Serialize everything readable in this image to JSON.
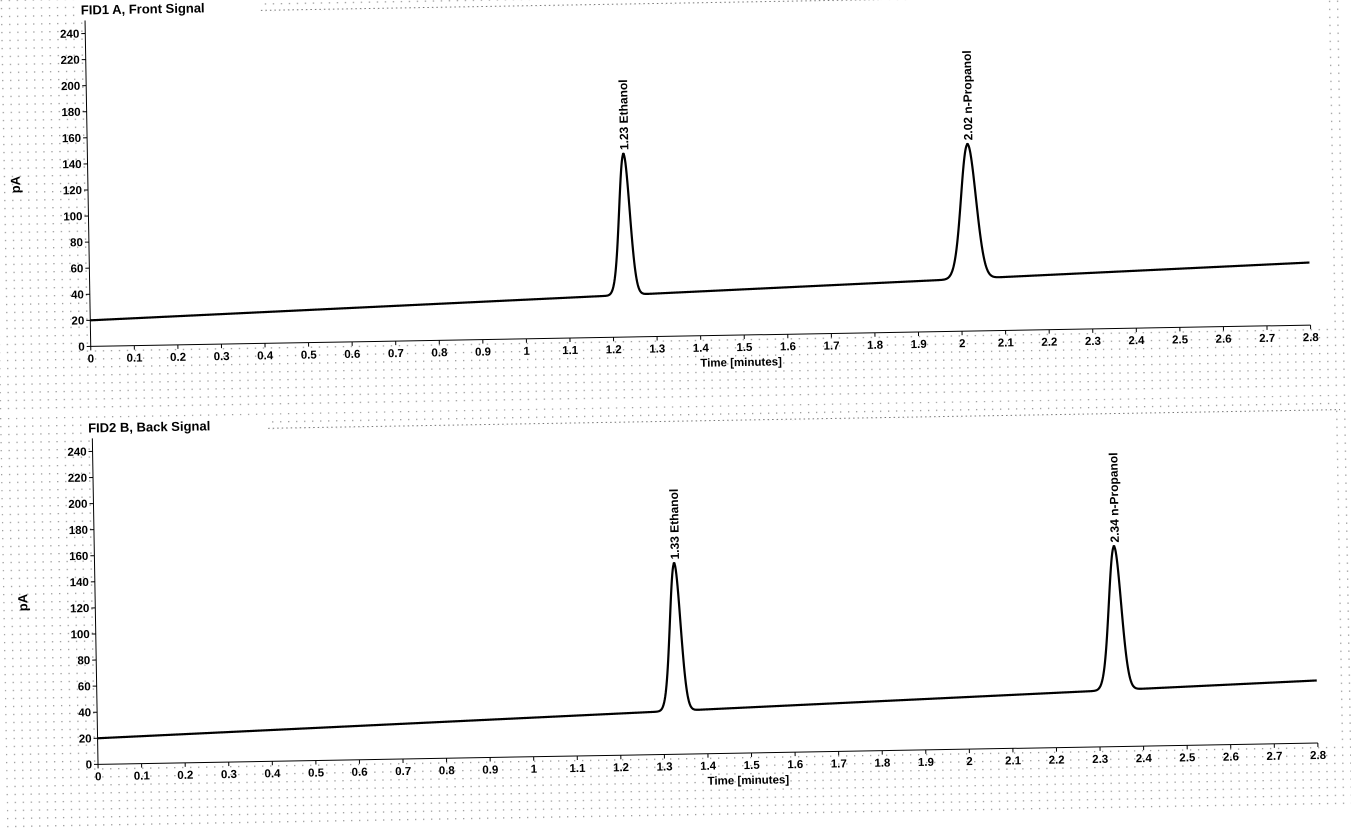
{
  "chart_data": [
    {
      "type": "line",
      "title": "FID1 A, Front Signal",
      "xlabel": "Time [minutes]",
      "ylabel": "pA",
      "xlim": [
        0,
        2.8
      ],
      "ylim": [
        0,
        250
      ],
      "x_ticks": [
        "0",
        "0.1",
        "0.2",
        "0.3",
        "0.4",
        "0.5",
        "0.6",
        "0.7",
        "0.8",
        "0.9",
        "1",
        "1.1",
        "1.2",
        "1.3",
        "1.4",
        "1.5",
        "1.6",
        "1.7",
        "1.8",
        "1.9",
        "2",
        "2.1",
        "2.2",
        "2.3",
        "2.4",
        "2.5",
        "2.6",
        "2.7",
        "2.8"
      ],
      "y_ticks": [
        "0",
        "20",
        "40",
        "60",
        "80",
        "100",
        "120",
        "140",
        "160",
        "180",
        "200",
        "220",
        "240"
      ],
      "grid": true,
      "baseline": {
        "start": 20,
        "end": 48
      },
      "peaks": [
        {
          "time": 1.23,
          "height": 128,
          "width": 0.012,
          "label": "1.23  Ethanol"
        },
        {
          "time": 2.02,
          "height": 123,
          "width": 0.017,
          "label": "2.02  n-Propanol"
        }
      ]
    },
    {
      "type": "line",
      "title": "FID2 B, Back Signal",
      "xlabel": "Time [minutes]",
      "ylabel": "pA",
      "xlim": [
        0,
        2.8
      ],
      "ylim": [
        0,
        250
      ],
      "x_ticks": [
        "0",
        "0.1",
        "0.2",
        "0.3",
        "0.4",
        "0.5",
        "0.6",
        "0.7",
        "0.8",
        "0.9",
        "1",
        "1.1",
        "1.2",
        "1.3",
        "1.4",
        "1.5",
        "1.6",
        "1.7",
        "1.8",
        "1.9",
        "2",
        "2.1",
        "2.2",
        "2.3",
        "2.4",
        "2.5",
        "2.6",
        "2.7",
        "2.8"
      ],
      "y_ticks": [
        "0",
        "20",
        "40",
        "60",
        "80",
        "100",
        "120",
        "140",
        "160",
        "180",
        "200",
        "220",
        "240"
      ],
      "grid": true,
      "baseline": {
        "start": 20,
        "end": 48
      },
      "peaks": [
        {
          "time": 1.33,
          "height": 133,
          "width": 0.012,
          "label": "1.33  Ethanol"
        },
        {
          "time": 2.34,
          "height": 130,
          "width": 0.014,
          "label": "2.34  n-Propanol"
        }
      ]
    }
  ]
}
